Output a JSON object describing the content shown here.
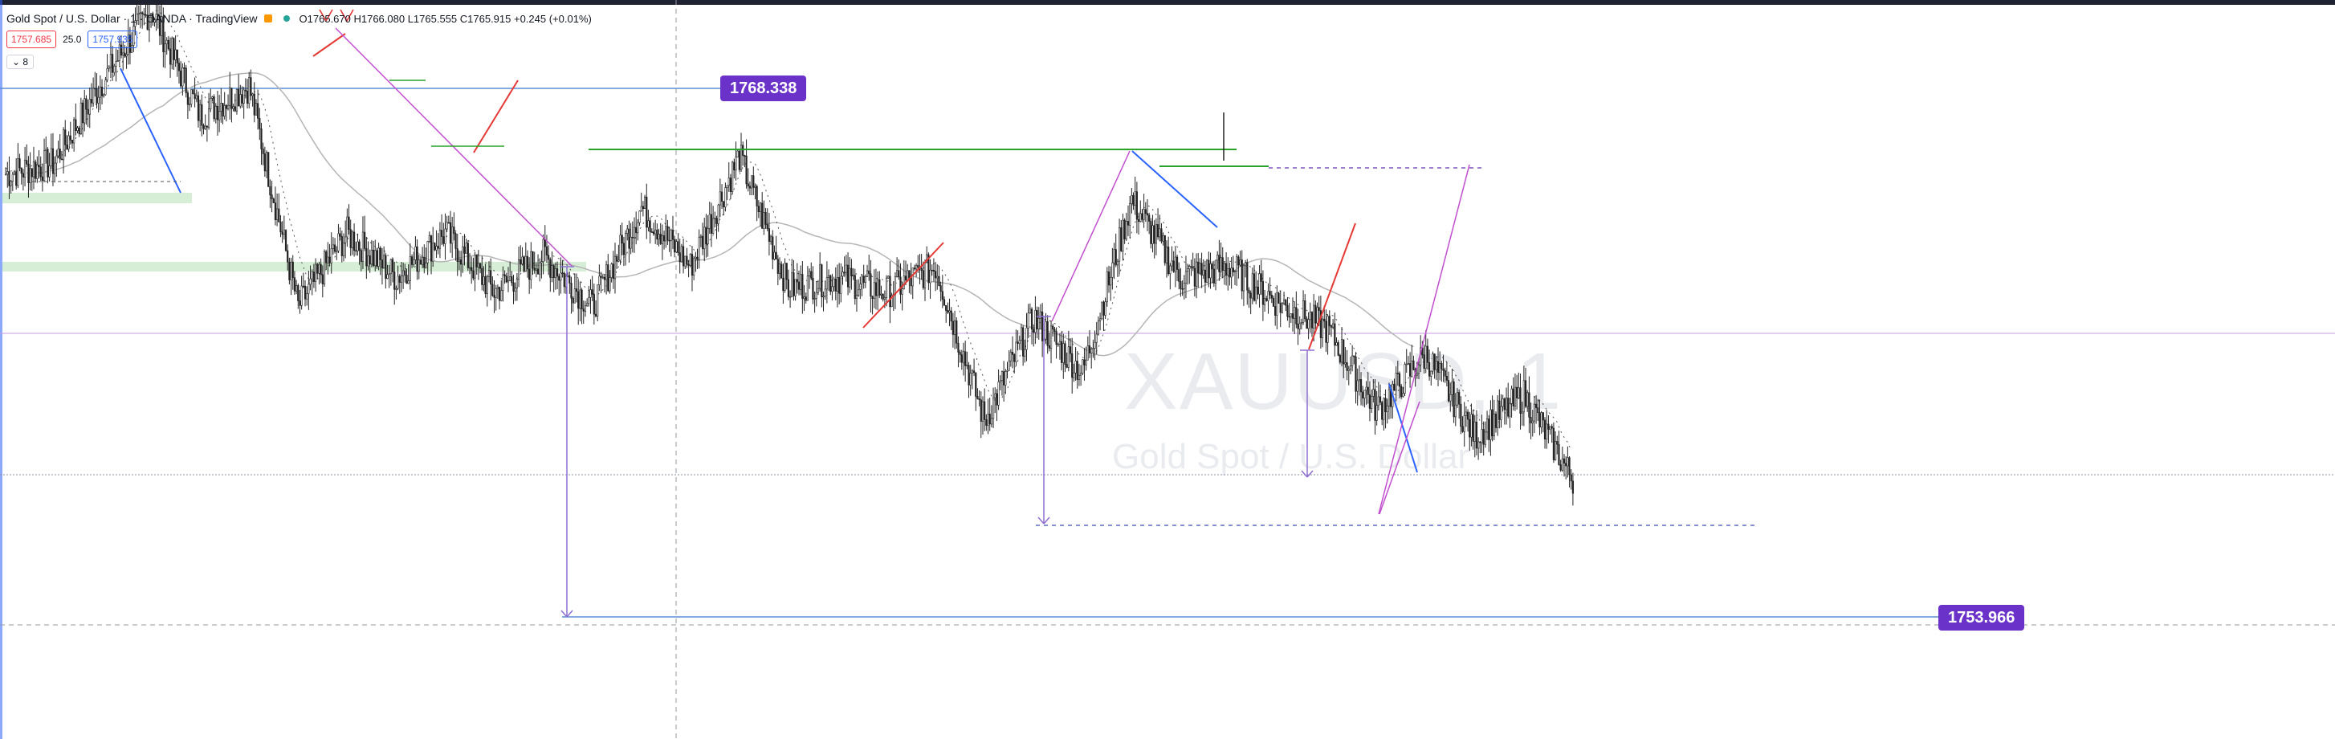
{
  "header": {
    "title": "Gold Spot / U.S. Dollar · 1 · OANDA · TradingView",
    "ohlc": "O1765.670 H1766.080 L1765.555 C1765.915 +0.245 (+0.01%)",
    "sell_price": "1757.685",
    "spread": "25.0",
    "buy_price": "1757.935",
    "indicator_toggle": "8"
  },
  "watermark": {
    "symbol": "XAUUSD, 1",
    "name": "Gold Spot / U.S. Dollar"
  },
  "labels": {
    "upper_level": "1768.338",
    "lower_level": "1753.966"
  },
  "colors": {
    "bull": "#26a69a",
    "bear": "#ef5350",
    "label_bg": "#6a32c9",
    "blue_line": "#2962ff",
    "green_line": "#2aa32a",
    "zone": "#d5eed5",
    "ma": "#b5b5b5",
    "magenta": "#c24fd0"
  },
  "chart_data": {
    "type": "candlestick",
    "symbol": "XAUUSD",
    "timeframe": "1",
    "horizontal_levels": [
      1768.338,
      1753.966
    ],
    "segments": [
      {
        "from": 1766.0,
        "to": 1766.3
      },
      {
        "from": 1766.3,
        "to": 1768.5
      },
      {
        "from": 1768.5,
        "to": 1770.5
      },
      {
        "from": 1770.5,
        "to": 1767.6
      },
      {
        "from": 1767.6,
        "to": 1768.4
      },
      {
        "from": 1768.4,
        "to": 1762.4
      },
      {
        "from": 1762.4,
        "to": 1764.4
      },
      {
        "from": 1764.4,
        "to": 1763.2
      },
      {
        "from": 1763.2,
        "to": 1764.4
      },
      {
        "from": 1764.4,
        "to": 1762.8
      },
      {
        "from": 1762.8,
        "to": 1763.8
      },
      {
        "from": 1763.8,
        "to": 1762.4
      },
      {
        "from": 1762.4,
        "to": 1765.1
      },
      {
        "from": 1765.1,
        "to": 1763.5
      },
      {
        "from": 1763.5,
        "to": 1766.5
      },
      {
        "from": 1766.5,
        "to": 1762.9
      },
      {
        "from": 1762.9,
        "to": 1763.2
      },
      {
        "from": 1763.2,
        "to": 1762.8
      },
      {
        "from": 1762.8,
        "to": 1763.5
      },
      {
        "from": 1763.5,
        "to": 1759.3
      },
      {
        "from": 1759.3,
        "to": 1762.1
      },
      {
        "from": 1762.1,
        "to": 1760.6
      },
      {
        "from": 1760.6,
        "to": 1765.3
      },
      {
        "from": 1765.3,
        "to": 1763.2
      },
      {
        "from": 1763.2,
        "to": 1763.5
      },
      {
        "from": 1763.5,
        "to": 1762.5
      },
      {
        "from": 1762.5,
        "to": 1761.8
      },
      {
        "from": 1761.8,
        "to": 1759.6
      },
      {
        "from": 1759.6,
        "to": 1761.1
      },
      {
        "from": 1761.1,
        "to": 1758.9
      },
      {
        "from": 1758.9,
        "to": 1760.0
      },
      {
        "from": 1760.0,
        "to": 1757.7
      }
    ]
  }
}
